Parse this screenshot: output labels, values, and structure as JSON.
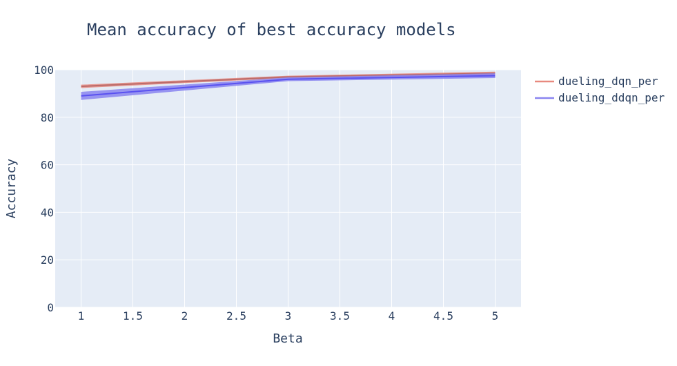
{
  "chart_data": {
    "type": "line",
    "title": "Mean accuracy of best accuracy models",
    "xlabel": "Beta",
    "ylabel": "Accuracy",
    "xlim": [
      0.75,
      5.25
    ],
    "ylim": [
      0,
      100
    ],
    "x_ticks": [
      1,
      1.5,
      2,
      2.5,
      3,
      3.5,
      4,
      4.5,
      5
    ],
    "x_tick_labels": [
      "1",
      "1.5",
      "2",
      "2.5",
      "3",
      "3.5",
      "4",
      "4.5",
      "5"
    ],
    "y_ticks": [
      0,
      20,
      40,
      60,
      80,
      100
    ],
    "y_tick_labels": [
      "0",
      "20",
      "40",
      "60",
      "80",
      "100"
    ],
    "grid": true,
    "legend_position": "top-right",
    "x": [
      1,
      3,
      5
    ],
    "series": [
      {
        "name": "dueling_dqn_per",
        "color": "#e8897f",
        "line_color": "#b06060",
        "values": [
          93.0,
          97.0,
          98.5
        ],
        "band_lower": [
          92.3,
          96.5,
          97.8
        ],
        "band_upper": [
          93.7,
          97.5,
          99.2
        ]
      },
      {
        "name": "dueling_ddqn_per",
        "color": "#8a85f0",
        "line_color": "#4a40f0",
        "values": [
          89.0,
          96.0,
          97.5
        ],
        "band_lower": [
          87.3,
          95.2,
          96.5
        ],
        "band_upper": [
          90.7,
          96.8,
          98.5
        ]
      }
    ]
  }
}
